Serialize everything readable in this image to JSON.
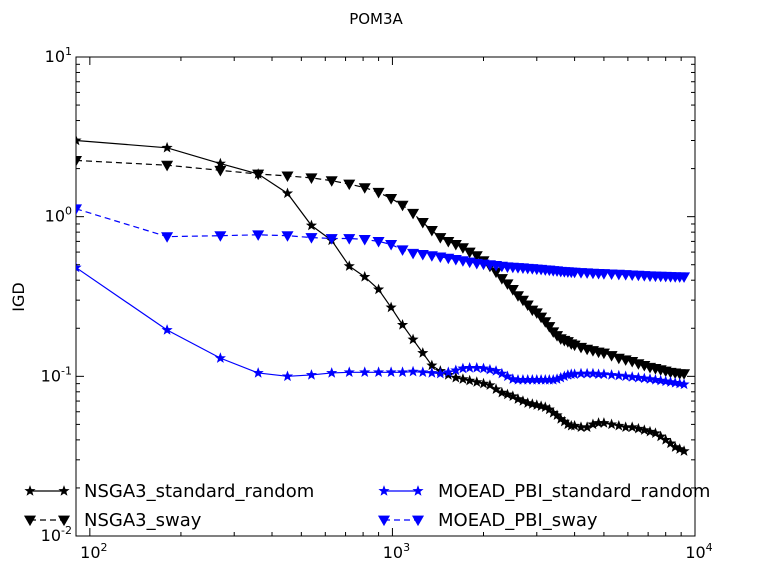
{
  "chart_data": {
    "type": "line",
    "title": "POM3A",
    "xlabel": "",
    "ylabel": "IGD",
    "x_scale": "log",
    "y_scale": "log",
    "xlim": [
      90,
      10000
    ],
    "ylim": [
      0.01,
      10
    ],
    "x_ticks": [
      {
        "value": 100,
        "base": "10",
        "exp": "2"
      },
      {
        "value": 1000,
        "base": "10",
        "exp": "3"
      },
      {
        "value": 10000,
        "base": "10",
        "exp": "4"
      }
    ],
    "y_ticks": [
      {
        "value": 0.01,
        "base": "10",
        "exp": "-2"
      },
      {
        "value": 0.1,
        "base": "10",
        "exp": "-1"
      },
      {
        "value": 1,
        "base": "10",
        "exp": "0"
      },
      {
        "value": 10,
        "base": "10",
        "exp": "1"
      }
    ],
    "grid": false,
    "legend_position": "bottom",
    "series": [
      {
        "name": "NSGA3_standard_random",
        "color": "#000000",
        "linestyle": "solid",
        "marker": "star",
        "x": [
          90,
          180,
          270,
          360,
          450,
          540,
          630,
          720,
          810,
          900,
          990,
          1080,
          1170,
          1260,
          1350,
          1440,
          1530,
          1620,
          1710,
          1800,
          1900,
          2000,
          2100,
          2200,
          2300,
          2400,
          2500,
          2600,
          2700,
          2800,
          2900,
          3000,
          3100,
          3200,
          3300,
          3400,
          3500,
          3600,
          3700,
          3800,
          3900,
          4000,
          4200,
          4400,
          4600,
          4800,
          5000,
          5300,
          5600,
          5900,
          6200,
          6500,
          6800,
          7100,
          7400,
          7700,
          8000,
          8300,
          8600,
          8900,
          9200
        ],
        "y": [
          3.0,
          2.7,
          2.15,
          1.85,
          1.4,
          0.88,
          0.71,
          0.49,
          0.42,
          0.35,
          0.27,
          0.21,
          0.17,
          0.14,
          0.117,
          0.108,
          0.102,
          0.098,
          0.096,
          0.094,
          0.092,
          0.09,
          0.088,
          0.083,
          0.079,
          0.077,
          0.075,
          0.072,
          0.07,
          0.068,
          0.067,
          0.066,
          0.065,
          0.064,
          0.062,
          0.059,
          0.057,
          0.054,
          0.052,
          0.05,
          0.049,
          0.049,
          0.048,
          0.048,
          0.05,
          0.051,
          0.051,
          0.05,
          0.049,
          0.048,
          0.048,
          0.047,
          0.046,
          0.045,
          0.044,
          0.042,
          0.04,
          0.038,
          0.036,
          0.035,
          0.034
        ]
      },
      {
        "name": "NSGA3_sway",
        "color": "#000000",
        "linestyle": "dashed",
        "marker": "triangle-down",
        "x": [
          90,
          180,
          270,
          360,
          450,
          540,
          630,
          720,
          810,
          900,
          990,
          1080,
          1170,
          1260,
          1350,
          1440,
          1530,
          1620,
          1710,
          1800,
          1900,
          2000,
          2100,
          2200,
          2300,
          2400,
          2500,
          2600,
          2700,
          2800,
          2900,
          3000,
          3100,
          3200,
          3300,
          3400,
          3500,
          3600,
          3700,
          3800,
          3900,
          4000,
          4200,
          4400,
          4600,
          4800,
          5000,
          5300,
          5600,
          5900,
          6200,
          6500,
          6800,
          7100,
          7400,
          7700,
          8000,
          8300,
          8600,
          8900,
          9200
        ],
        "y": [
          2.25,
          2.1,
          1.95,
          1.85,
          1.8,
          1.75,
          1.68,
          1.6,
          1.52,
          1.42,
          1.3,
          1.18,
          1.05,
          0.92,
          0.82,
          0.74,
          0.7,
          0.67,
          0.64,
          0.6,
          0.57,
          0.53,
          0.49,
          0.45,
          0.41,
          0.38,
          0.35,
          0.32,
          0.3,
          0.28,
          0.26,
          0.25,
          0.235,
          0.22,
          0.205,
          0.19,
          0.18,
          0.172,
          0.168,
          0.165,
          0.16,
          0.157,
          0.152,
          0.148,
          0.145,
          0.142,
          0.14,
          0.135,
          0.13,
          0.127,
          0.124,
          0.12,
          0.117,
          0.114,
          0.112,
          0.11,
          0.108,
          0.106,
          0.105,
          0.104,
          0.104
        ]
      },
      {
        "name": "MOEAD_PBI_standard_random",
        "color": "#0000ff",
        "linestyle": "solid",
        "marker": "star",
        "x": [
          90,
          180,
          270,
          360,
          450,
          540,
          630,
          720,
          810,
          900,
          990,
          1080,
          1170,
          1260,
          1350,
          1440,
          1530,
          1620,
          1710,
          1800,
          1900,
          2000,
          2100,
          2200,
          2300,
          2400,
          2500,
          2600,
          2700,
          2800,
          2900,
          3000,
          3100,
          3200,
          3300,
          3400,
          3500,
          3600,
          3700,
          3800,
          3900,
          4000,
          4200,
          4400,
          4600,
          4800,
          5000,
          5300,
          5600,
          5900,
          6200,
          6500,
          6800,
          7100,
          7400,
          7700,
          8000,
          8300,
          8600,
          8900,
          9200
        ],
        "y": [
          0.48,
          0.195,
          0.13,
          0.105,
          0.1,
          0.102,
          0.105,
          0.106,
          0.106,
          0.106,
          0.106,
          0.106,
          0.107,
          0.106,
          0.105,
          0.104,
          0.106,
          0.109,
          0.112,
          0.113,
          0.113,
          0.112,
          0.11,
          0.108,
          0.104,
          0.1,
          0.096,
          0.095,
          0.095,
          0.095,
          0.095,
          0.095,
          0.095,
          0.095,
          0.095,
          0.095,
          0.096,
          0.098,
          0.1,
          0.102,
          0.103,
          0.103,
          0.104,
          0.104,
          0.104,
          0.103,
          0.103,
          0.102,
          0.101,
          0.1,
          0.099,
          0.098,
          0.097,
          0.096,
          0.095,
          0.094,
          0.093,
          0.092,
          0.091,
          0.09,
          0.089
        ]
      },
      {
        "name": "MOEAD_PBI_sway",
        "color": "#0000ff",
        "linestyle": "dashed",
        "marker": "triangle-down",
        "x": [
          90,
          180,
          270,
          360,
          450,
          540,
          630,
          720,
          810,
          900,
          990,
          1080,
          1170,
          1260,
          1350,
          1440,
          1530,
          1620,
          1710,
          1800,
          1900,
          2000,
          2100,
          2200,
          2300,
          2400,
          2500,
          2600,
          2700,
          2800,
          2900,
          3000,
          3100,
          3200,
          3300,
          3400,
          3500,
          3600,
          3700,
          3800,
          3900,
          4000,
          4200,
          4400,
          4600,
          4800,
          5000,
          5300,
          5600,
          5900,
          6200,
          6500,
          6800,
          7100,
          7400,
          7700,
          8000,
          8300,
          8600,
          8900,
          9200
        ],
        "y": [
          1.12,
          0.75,
          0.76,
          0.77,
          0.76,
          0.74,
          0.73,
          0.73,
          0.72,
          0.7,
          0.67,
          0.62,
          0.59,
          0.58,
          0.57,
          0.56,
          0.55,
          0.54,
          0.53,
          0.52,
          0.51,
          0.505,
          0.5,
          0.495,
          0.49,
          0.485,
          0.483,
          0.48,
          0.478,
          0.475,
          0.473,
          0.47,
          0.468,
          0.465,
          0.463,
          0.46,
          0.458,
          0.455,
          0.453,
          0.452,
          0.45,
          0.449,
          0.447,
          0.445,
          0.443,
          0.441,
          0.44,
          0.438,
          0.436,
          0.434,
          0.432,
          0.43,
          0.428,
          0.426,
          0.425,
          0.424,
          0.423,
          0.422,
          0.421,
          0.42,
          0.42
        ]
      }
    ]
  }
}
